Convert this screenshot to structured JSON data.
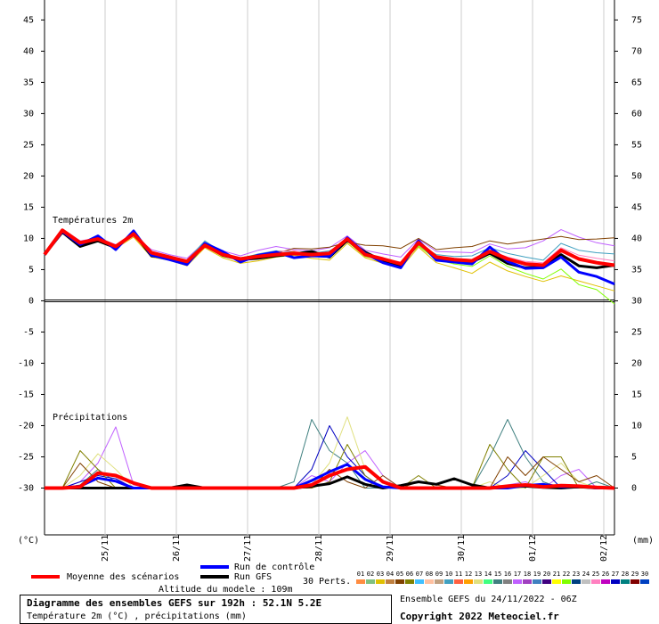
{
  "chart_data": {
    "type": "line",
    "panel_labels": {
      "temperature": "Températures 2m",
      "precipitation": "Précipitations"
    },
    "y_unit": "(°C)",
    "y2_unit": "(mm)",
    "categories": [
      null,
      null,
      null,
      "25/11",
      null,
      null,
      null,
      "26/11",
      null,
      null,
      null,
      "27/11",
      null,
      null,
      null,
      "28/11",
      null,
      null,
      null,
      "29/11",
      null,
      null,
      null,
      "30/11",
      null,
      null,
      null,
      "01/12",
      null,
      null,
      null,
      "02/12",
      null
    ],
    "ylim": [
      -37.5,
      48.2
    ],
    "yticks": [
      45,
      40,
      35,
      30,
      25,
      20,
      15,
      10,
      5,
      0,
      -5,
      -10,
      -15,
      -20,
      -25,
      -30
    ],
    "y2lim": [
      -7.5,
      78.2
    ],
    "y2ticks": [
      75,
      70,
      65,
      60,
      55,
      50,
      45,
      40,
      35,
      30,
      25,
      20,
      15,
      10,
      5,
      0
    ],
    "series": [
      {
        "color": "#c060ff",
        "width": 1,
        "values": [
          7.4,
          11.5,
          9.6,
          10.1,
          9,
          10.5,
          8.2,
          7.4,
          6.8,
          9.4,
          8,
          7.2,
          8.1,
          8.7,
          8.2,
          8,
          8.5,
          10.4,
          8.1,
          7.5,
          7,
          9.9,
          7.9,
          7.8,
          7.7,
          9.1,
          8.3,
          8.5,
          9.6,
          11.4,
          10.2,
          9.3,
          8.8
        ]
      },
      {
        "color": "#e0c000",
        "width": 1,
        "values": [
          7.4,
          11,
          9,
          9.5,
          8.4,
          10.2,
          7,
          6.5,
          5.6,
          8.5,
          6.9,
          6,
          6.4,
          7,
          7.3,
          6.8,
          6.5,
          9.2,
          6.9,
          6,
          5.2,
          8.6,
          6.1,
          5.3,
          4.4,
          6.2,
          4.8,
          3.9,
          3.1,
          4,
          3.2,
          2.4,
          1.6
        ]
      },
      {
        "color": "#40a0c0",
        "width": 1,
        "values": [
          7.4,
          11.2,
          9.1,
          10,
          8.8,
          11,
          7.9,
          7.2,
          6.5,
          9.6,
          7.7,
          6.8,
          7.5,
          8,
          7.8,
          7.6,
          8,
          9.6,
          7.2,
          6.3,
          5.5,
          9,
          7.4,
          7.1,
          7.2,
          8.5,
          7.6,
          7,
          6.5,
          9.2,
          8.1,
          7.7,
          7.5
        ]
      },
      {
        "color": "#80ff00",
        "width": 1,
        "values": [
          7.4,
          11.4,
          9.4,
          9.8,
          8.5,
          10.8,
          7.5,
          6.8,
          6,
          8.7,
          7.1,
          6.5,
          6.9,
          7.3,
          7.9,
          7.1,
          7.3,
          9.5,
          7.1,
          6.5,
          5.8,
          8.8,
          6.6,
          5.9,
          5.5,
          7.2,
          5.5,
          4.4,
          3.5,
          5.1,
          2.6,
          1.8,
          -0.5
        ]
      },
      {
        "color": "#804000",
        "width": 1,
        "values": [
          7.4,
          11,
          9.2,
          9.7,
          8.9,
          10.6,
          7.8,
          7.1,
          6.4,
          9.1,
          7.5,
          6.9,
          7.4,
          7.6,
          8.4,
          8.3,
          8.6,
          9.4,
          8.9,
          8.8,
          8.4,
          10,
          8.2,
          8.5,
          8.7,
          9.6,
          9.1,
          9.5,
          9.9,
          10.3,
          9.8,
          9.9,
          10.1
        ]
      },
      {
        "color": "#ff80c0",
        "width": 1,
        "values": [
          7.4,
          11.3,
          9.5,
          10.2,
          8.6,
          10.4,
          7.6,
          7.2,
          6.2,
          8.8,
          7.2,
          6.4,
          7.2,
          7.9,
          8,
          7.3,
          7.8,
          9.8,
          7.5,
          6.8,
          6.2,
          9.2,
          7.1,
          6.8,
          6.6,
          8,
          7,
          6.3,
          6.1,
          8.5,
          7.3,
          6.8,
          6.4
        ]
      },
      {
        "color": "#c060ff",
        "width": 1,
        "axis": "y2",
        "values": [
          0,
          0,
          1,
          4,
          9.8,
          0.5,
          0,
          0,
          0,
          0,
          0,
          0,
          0,
          0,
          0,
          2,
          1,
          4,
          6,
          2,
          0,
          0,
          0,
          0,
          0,
          0,
          0.5,
          1,
          0,
          2,
          3,
          0,
          0
        ]
      },
      {
        "color": "#408080",
        "width": 1,
        "axis": "y2",
        "values": [
          0,
          0,
          0.5,
          3,
          1,
          0,
          0,
          0,
          0,
          0,
          0,
          0,
          0,
          0,
          1,
          11,
          6,
          4,
          0,
          0,
          0,
          0,
          0,
          0,
          0,
          5,
          11,
          5,
          1,
          0,
          0,
          1,
          0
        ]
      },
      {
        "color": "#e0e080",
        "width": 1,
        "axis": "y2",
        "values": [
          0,
          0,
          2,
          5.5,
          3,
          0,
          0,
          0,
          0,
          0,
          0,
          0,
          0,
          0,
          0,
          0.5,
          4,
          11.4,
          3,
          1,
          0,
          0,
          0,
          0,
          0,
          1,
          0,
          0,
          2,
          4,
          1,
          0,
          0
        ]
      },
      {
        "color": "#0000c0",
        "width": 1,
        "axis": "y2",
        "values": [
          0,
          0,
          1,
          2,
          1.5,
          0,
          0,
          0,
          0,
          0,
          0,
          0,
          0,
          0,
          0,
          3,
          10,
          5,
          2,
          0,
          0,
          0,
          0,
          0,
          0,
          0,
          2,
          6,
          3,
          0,
          0,
          0,
          0
        ]
      },
      {
        "color": "#808000",
        "width": 1,
        "axis": "y2",
        "values": [
          0,
          0,
          6,
          3,
          0,
          0,
          0,
          0,
          0,
          0,
          0,
          0,
          0,
          0,
          0,
          0,
          1,
          7,
          2,
          0,
          0,
          2,
          0,
          0,
          0,
          7,
          3,
          0,
          5,
          5,
          0,
          0,
          0
        ]
      },
      {
        "color": "#804000",
        "width": 1,
        "axis": "y2",
        "values": [
          0,
          0,
          4,
          1,
          0,
          0,
          0,
          0,
          0,
          0,
          0,
          0,
          0,
          0,
          0,
          0,
          3,
          1,
          0,
          2,
          0,
          1,
          0.5,
          0,
          0,
          0,
          5,
          2,
          5,
          3,
          1,
          2,
          0
        ]
      },
      {
        "name": "Run GFS",
        "color": "#000000",
        "width": 3,
        "values": [
          7.4,
          11,
          8.7,
          9.6,
          8.5,
          10.9,
          7.2,
          6.9,
          5.9,
          9,
          7.3,
          6.6,
          6.8,
          7.2,
          7.5,
          7.9,
          7,
          9.7,
          7.8,
          6.4,
          5.6,
          9.5,
          6.8,
          6.4,
          6.2,
          7.6,
          6,
          5.3,
          5.4,
          7.4,
          5.6,
          5.3,
          5.7
        ]
      },
      {
        "color": "#000000",
        "width": 3,
        "axis": "y2",
        "values": [
          0,
          0,
          0,
          0,
          0,
          0,
          0,
          0,
          0.5,
          0,
          0,
          0,
          0,
          0,
          0,
          0.3,
          0.7,
          1.8,
          0.6,
          0,
          0.4,
          1,
          0.6,
          1.5,
          0.5,
          0,
          0.2,
          0.3,
          0.1,
          0,
          0.2,
          0,
          0
        ]
      },
      {
        "name": "Run de contrôle",
        "color": "#0000ff",
        "width": 3,
        "values": [
          7.4,
          11.1,
          9,
          10.4,
          8.2,
          11.2,
          7.3,
          6.6,
          5.8,
          9.2,
          7.9,
          6.2,
          7.3,
          7.8,
          6.9,
          7.2,
          7.1,
          10.1,
          7.6,
          6.1,
          5.3,
          9.6,
          6.5,
          6.2,
          5.9,
          8.6,
          6.3,
          5.2,
          5.3,
          7,
          4.6,
          3.9,
          2.7
        ]
      },
      {
        "color": "#0000ff",
        "width": 3,
        "axis": "y2",
        "values": [
          0,
          0,
          0.3,
          1.6,
          1.1,
          0,
          0,
          0,
          0,
          0,
          0,
          0,
          0,
          0,
          0,
          1.2,
          2.6,
          3.8,
          1.4,
          0.2,
          0,
          0,
          0,
          0,
          0,
          0,
          0,
          0.4,
          0.6,
          0.2,
          0.3,
          0,
          0
        ]
      },
      {
        "name": "Moyenne des scénarios",
        "color": "#ff0000",
        "width": 4,
        "values": [
          7.4,
          11.3,
          9.3,
          9.9,
          8.7,
          10.7,
          7.7,
          7,
          6.3,
          8.9,
          7.4,
          6.7,
          7.1,
          7.4,
          7.6,
          7.4,
          7.6,
          9.9,
          7.4,
          6.7,
          5.9,
          9.3,
          7,
          6.6,
          6.4,
          7.9,
          6.7,
          5.9,
          5.7,
          8.1,
          6.7,
          6.1,
          5.7
        ]
      },
      {
        "color": "#ff0000",
        "width": 4,
        "axis": "y2",
        "values": [
          0,
          0,
          0.2,
          2.4,
          2,
          0.8,
          0,
          0,
          0,
          0,
          0,
          0,
          0,
          0,
          0,
          0.5,
          2,
          3,
          3.4,
          1,
          0,
          0,
          0,
          0,
          0,
          0,
          0.3,
          0.5,
          0.2,
          0.4,
          0.3,
          0.1,
          0
        ]
      }
    ],
    "perturbations_label": "30 Perts.",
    "perturbations": [
      {
        "name": "01",
        "color": "#ff8c40"
      },
      {
        "name": "02",
        "color": "#80c080"
      },
      {
        "name": "03",
        "color": "#e0c000"
      },
      {
        "name": "04",
        "color": "#c08040"
      },
      {
        "name": "05",
        "color": "#804000"
      },
      {
        "name": "06",
        "color": "#808000"
      },
      {
        "name": "07",
        "color": "#40c0ff"
      },
      {
        "name": "08",
        "color": "#ffc0a0"
      },
      {
        "name": "09",
        "color": "#c0a080"
      },
      {
        "name": "10",
        "color": "#40a0c0"
      },
      {
        "name": "11",
        "color": "#ff6040"
      },
      {
        "name": "12",
        "color": "#ffa000"
      },
      {
        "name": "13",
        "color": "#e0e080"
      },
      {
        "name": "14",
        "color": "#40ff80"
      },
      {
        "name": "15",
        "color": "#408080"
      },
      {
        "name": "16",
        "color": "#808080"
      },
      {
        "name": "17",
        "color": "#c060ff"
      },
      {
        "name": "18",
        "color": "#a040c0"
      },
      {
        "name": "19",
        "color": "#4080c0"
      },
      {
        "name": "20",
        "color": "#400080"
      },
      {
        "name": "21",
        "color": "#ffff00"
      },
      {
        "name": "22",
        "color": "#80ff00"
      },
      {
        "name": "23",
        "color": "#004080"
      },
      {
        "name": "24",
        "color": "#c0c0c0"
      },
      {
        "name": "25",
        "color": "#ff80c0"
      },
      {
        "name": "26",
        "color": "#c000c0"
      },
      {
        "name": "27",
        "color": "#0000c0"
      },
      {
        "name": "28",
        "color": "#008080"
      },
      {
        "name": "29",
        "color": "#800000"
      },
      {
        "name": "30",
        "color": "#0040c0"
      }
    ],
    "altitude": "Altitude du modele : 109m",
    "title": "Diagramme des ensembles GEFS sur 192h : 52.1N 5.2E",
    "subtitle": "Température 2m (°C) , précipitations (mm)",
    "run_info": "Ensemble GEFS du 24/11/2022 - 06Z",
    "copyright": "Copyright 2022 Meteociel.fr"
  }
}
